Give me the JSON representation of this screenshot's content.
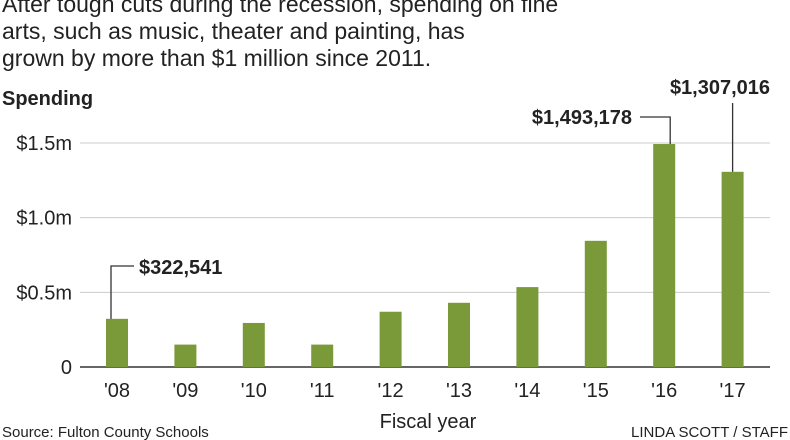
{
  "chart_data": {
    "type": "bar",
    "subtitle": "After tough cuts during the recession, spending on fine arts, such as music, theater and painting, has grown by more than $1 million since 2011.",
    "y_label": "Spending",
    "x_label": "Fiscal year",
    "source": "Source: Fulton County Schools",
    "credit": "LINDA SCOTT / STAFF",
    "categories": [
      "'08",
      "'09",
      "'10",
      "'11",
      "'12",
      "'13",
      "'14",
      "'15",
      "'16",
      "'17"
    ],
    "values": [
      322541,
      150000,
      295000,
      150000,
      370000,
      430000,
      535000,
      845000,
      1493178,
      1307016
    ],
    "value_labels": [
      "$322,541",
      null,
      null,
      null,
      null,
      null,
      null,
      null,
      "$1,493,178",
      "$1,307,016"
    ],
    "color": "#7a9a3a",
    "ylim": [
      0,
      1500000
    ],
    "yticks": [
      0,
      {
        "value": 500000,
        "label": "$0.5m"
      },
      {
        "value": 1000000,
        "label": "$1.0m"
      },
      {
        "value": 1500000,
        "label": "$1.5m"
      }
    ],
    "grid": true
  }
}
